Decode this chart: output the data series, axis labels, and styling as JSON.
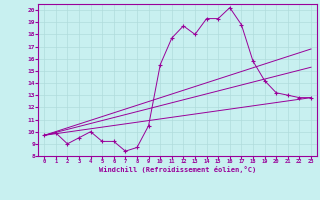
{
  "xlabel": "Windchill (Refroidissement éolien,°C)",
  "xlim": [
    -0.5,
    23.5
  ],
  "ylim": [
    8,
    20.5
  ],
  "xticks": [
    0,
    1,
    2,
    3,
    4,
    5,
    6,
    7,
    8,
    9,
    10,
    11,
    12,
    13,
    14,
    15,
    16,
    17,
    18,
    19,
    20,
    21,
    22,
    23
  ],
  "yticks": [
    8,
    9,
    10,
    11,
    12,
    13,
    14,
    15,
    16,
    17,
    18,
    19,
    20
  ],
  "bg_color": "#c8f0f0",
  "grid_color": "#b0dcdc",
  "line_color": "#990099",
  "line1_x": [
    0,
    1,
    2,
    3,
    4,
    5,
    6,
    7,
    8,
    9,
    10,
    11,
    12,
    13,
    14,
    15,
    16,
    17,
    18,
    19,
    20,
    21,
    22,
    23
  ],
  "line1_y": [
    9.7,
    9.9,
    9.0,
    9.5,
    10.0,
    9.2,
    9.2,
    8.4,
    8.7,
    10.5,
    15.5,
    17.7,
    18.7,
    18.0,
    19.3,
    19.3,
    20.2,
    18.8,
    15.8,
    14.2,
    13.2,
    13.0,
    12.8,
    12.8
  ],
  "line2_x": [
    0,
    23
  ],
  "line2_y": [
    9.7,
    16.8
  ],
  "line3_x": [
    0,
    23
  ],
  "line3_y": [
    9.7,
    15.3
  ],
  "line4_x": [
    0,
    23
  ],
  "line4_y": [
    9.7,
    12.8
  ]
}
